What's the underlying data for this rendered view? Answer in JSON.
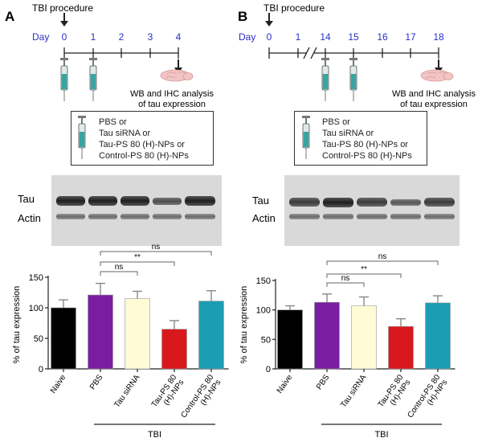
{
  "panels": [
    {
      "letter": "A",
      "procedure_label": "TBI procedure",
      "day_label": "Day",
      "days": [
        "0",
        "1",
        "2",
        "3",
        "4"
      ],
      "analysis_text": [
        "WB and IHC analysis",
        "of tau expression"
      ],
      "treatments": [
        "PBS or",
        "Tau siRNA or",
        "Tau-PS 80 (H)-NPs or",
        "Control-PS 80 (H)-NPs"
      ],
      "blot_labels": [
        "Tau",
        "Actin"
      ],
      "sig": [
        "ns",
        "**",
        "ns"
      ]
    },
    {
      "letter": "B",
      "procedure_label": "TBI procedure",
      "day_label": "Day",
      "days": [
        "0",
        "1",
        "14",
        "15",
        "16",
        "17",
        "18"
      ],
      "analysis_text": [
        "WB and IHC analysis",
        "of tau expression"
      ],
      "treatments": [
        "PBS or",
        "Tau siRNA or",
        "Tau-PS 80 (H)-NPs or",
        "Control-PS 80 (H)-NPs"
      ],
      "blot_labels": [
        "Tau",
        "Actin"
      ],
      "sig": [
        "ns",
        "**",
        "ns"
      ]
    }
  ],
  "chart_data": [
    {
      "type": "bar",
      "ylabel": "% of tau expression",
      "ylim": [
        0,
        150
      ],
      "yticks": [
        "0",
        "50",
        "100",
        "150"
      ],
      "categories": [
        "Naive",
        "PBS",
        "Tau siRNA",
        "Tau-PS 80\n(H)-NPs",
        "Control-PS 80\n(H)-NPs"
      ],
      "values": [
        100,
        121,
        115,
        65,
        111
      ],
      "errors": [
        13,
        19,
        12,
        14,
        17
      ],
      "colors": [
        "#000000",
        "#7a1ea1",
        "#fffbd6",
        "#d9181e",
        "#1b9db4"
      ],
      "group_label": "TBI"
    },
    {
      "type": "bar",
      "ylabel": "% of tau expression",
      "ylim": [
        0,
        150
      ],
      "yticks": [
        "0",
        "50",
        "100",
        "150"
      ],
      "categories": [
        "Naive",
        "PBS",
        "Tau siRNA",
        "Tau-PS 80\n(H)-NPs",
        "Control-PS 80\n(H)-NPs"
      ],
      "values": [
        100,
        113,
        107,
        72,
        112
      ],
      "errors": [
        7,
        14,
        15,
        13,
        12
      ],
      "colors": [
        "#000000",
        "#7a1ea1",
        "#fffbd6",
        "#d9181e",
        "#1b9db4"
      ],
      "group_label": "TBI"
    }
  ]
}
